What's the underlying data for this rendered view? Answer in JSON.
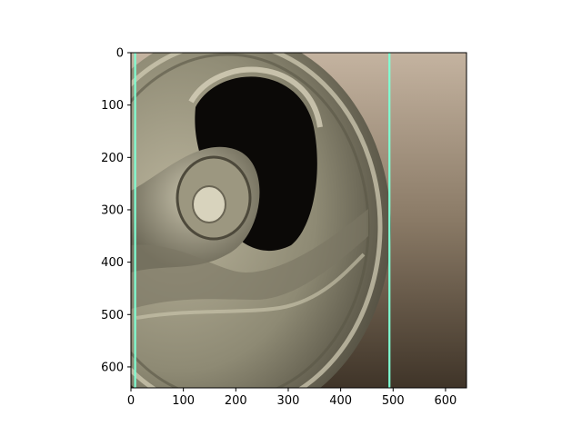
{
  "image": {
    "description_colors": {
      "can_metal_light": "#b9b39b",
      "can_metal_mid": "#8e8a74",
      "can_metal_dark": "#4e4a3d",
      "opening": "#0b0907",
      "background_light": "#c4b3a0",
      "background_dark": "#3f3428"
    }
  },
  "axes": {
    "x_ticks": [
      "0",
      "100",
      "200",
      "300",
      "400",
      "500",
      "600"
    ],
    "y_ticks": [
      "0",
      "100",
      "200",
      "300",
      "400",
      "500",
      "600"
    ],
    "x_range": [
      0,
      640
    ],
    "y_range": [
      0,
      640
    ],
    "y_inverted": true
  },
  "overlays": {
    "line_color": "#7fffd4",
    "vertical_lines_x": [
      8,
      493
    ]
  }
}
